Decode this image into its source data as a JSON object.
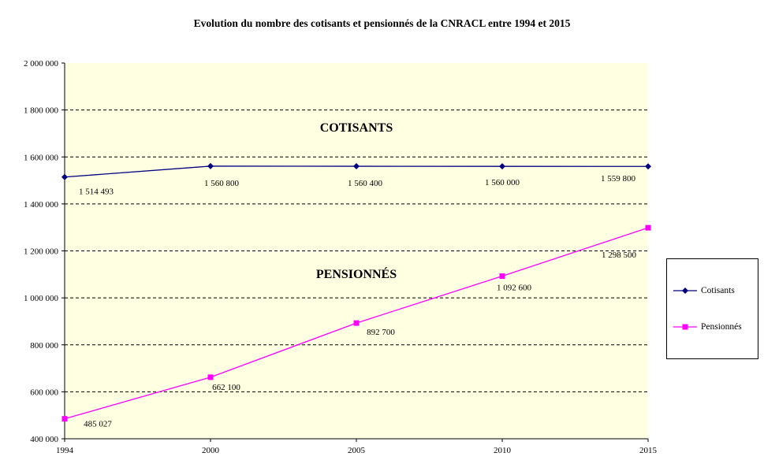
{
  "title": "Evolution du nombre des cotisants et pensionnés de la CNRACL entre 1994 et 2015",
  "chart_data": {
    "type": "line",
    "x_labels": [
      "1994",
      "2000",
      "2005",
      "2010",
      "2015"
    ],
    "ylim": [
      400000,
      2000000
    ],
    "ytick_step": 200000,
    "y_tick_labels": [
      "400 000",
      "600 000",
      "800 000",
      "1 000 000",
      "1 200 000",
      "1 400 000",
      "1 600 000",
      "1 800 000",
      "2 000 000"
    ],
    "grid": "dashed-horizontal",
    "plot_bg": "#FFFFE1",
    "xlabel": "",
    "ylabel": "",
    "series": [
      {
        "name": "Cotisants",
        "color": "#000080",
        "marker": "diamond",
        "values": [
          1514493,
          1560800,
          1560400,
          1560000,
          1559800
        ],
        "labels": [
          "1 514 493",
          "1 560 800",
          "1 560 400",
          "1 560 000",
          "1 559 800"
        ]
      },
      {
        "name": "Pensionnés",
        "color": "#FF00FF",
        "marker": "square",
        "values": [
          485027,
          662100,
          892700,
          1092600,
          1298500
        ],
        "labels": [
          "485 027",
          "662 100",
          "892 700",
          "1 092 600",
          "1 298 500"
        ]
      }
    ],
    "annotations": [
      {
        "text": "COTISANTS"
      },
      {
        "text": "PENSIONNÉS"
      }
    ],
    "legend": {
      "position": "right",
      "entries": [
        "Cotisants",
        "Pensionnés"
      ]
    }
  }
}
